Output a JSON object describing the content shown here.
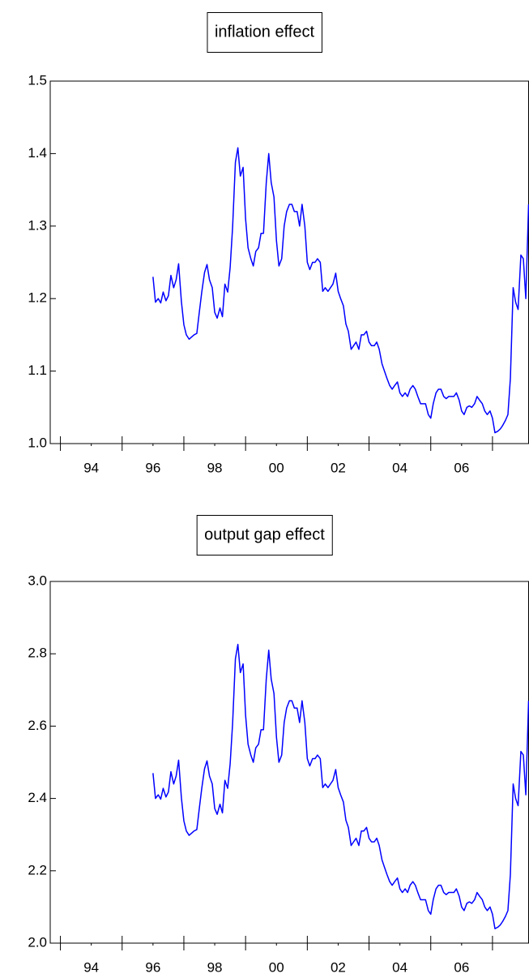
{
  "chart_data": [
    {
      "type": "line",
      "title": "inflation effect",
      "color": "#0000ff",
      "x": [
        1996,
        1996.08,
        1996.17,
        1996.25,
        1996.33,
        1996.42,
        1996.5,
        1996.58,
        1996.67,
        1996.75,
        1996.83,
        1996.92,
        1997,
        1997.08,
        1997.17,
        1997.25,
        1997.33,
        1997.42,
        1997.5,
        1997.58,
        1997.67,
        1997.75,
        1997.83,
        1997.92,
        1998,
        1998.08,
        1998.17,
        1998.25,
        1998.33,
        1998.42,
        1998.5,
        1998.58,
        1998.67,
        1998.75,
        1998.83,
        1998.92,
        1999,
        1999.08,
        1999.17,
        1999.25,
        1999.33,
        1999.42,
        1999.5,
        1999.58,
        1999.67,
        1999.75,
        1999.83,
        1999.92,
        2000,
        2000.08,
        2000.17,
        2000.25,
        2000.33,
        2000.42,
        2000.5,
        2000.58,
        2000.67,
        2000.75,
        2000.83,
        2000.92,
        2001,
        2001.08,
        2001.17,
        2001.25,
        2001.33,
        2001.42,
        2001.5,
        2001.58,
        2001.67,
        2001.75,
        2001.83,
        2001.92,
        2002,
        2002.08,
        2002.17,
        2002.25,
        2002.33,
        2002.42,
        2002.5,
        2002.58,
        2002.67,
        2002.75,
        2002.83,
        2002.92,
        2003,
        2003.08,
        2003.17,
        2003.25,
        2003.33,
        2003.42,
        2003.5,
        2003.58,
        2003.67,
        2003.75,
        2003.83,
        2003.92,
        2004,
        2004.08,
        2004.17,
        2004.25,
        2004.33,
        2004.42,
        2004.5,
        2004.58,
        2004.67,
        2004.75,
        2004.83,
        2004.92,
        2005,
        2005.08,
        2005.17,
        2005.25,
        2005.33,
        2005.42,
        2005.5,
        2005.58,
        2005.67,
        2005.75,
        2005.83,
        2005.92,
        2006,
        2006.08,
        2006.17,
        2006.25,
        2006.33,
        2006.42,
        2006.5,
        2006.58,
        2006.67,
        2006.75,
        2006.83,
        2006.92,
        2007,
        2007.08,
        2007.17,
        2007.25,
        2007.33,
        2007.42,
        2007.5,
        2007.58,
        2007.67,
        2007.75,
        2007.83,
        2007.92,
        2008,
        2008.08,
        2008.17
      ],
      "values": [
        1.23,
        1.195,
        1.2,
        1.194,
        1.209,
        1.197,
        1.204,
        1.232,
        1.215,
        1.226,
        1.248,
        1.196,
        1.164,
        1.15,
        1.144,
        1.147,
        1.15,
        1.152,
        1.181,
        1.209,
        1.236,
        1.247,
        1.226,
        1.215,
        1.181,
        1.173,
        1.187,
        1.175,
        1.22,
        1.209,
        1.243,
        1.299,
        1.388,
        1.408,
        1.369,
        1.381,
        1.31,
        1.27,
        1.255,
        1.245,
        1.265,
        1.27,
        1.29,
        1.29,
        1.36,
        1.4,
        1.36,
        1.34,
        1.28,
        1.245,
        1.255,
        1.3,
        1.32,
        1.33,
        1.33,
        1.32,
        1.32,
        1.3,
        1.33,
        1.3,
        1.25,
        1.24,
        1.25,
        1.25,
        1.255,
        1.25,
        1.21,
        1.215,
        1.21,
        1.215,
        1.22,
        1.235,
        1.21,
        1.2,
        1.19,
        1.165,
        1.155,
        1.13,
        1.135,
        1.14,
        1.13,
        1.15,
        1.15,
        1.155,
        1.14,
        1.135,
        1.135,
        1.14,
        1.13,
        1.11,
        1.1,
        1.09,
        1.08,
        1.075,
        1.08,
        1.085,
        1.07,
        1.065,
        1.07,
        1.065,
        1.075,
        1.08,
        1.075,
        1.065,
        1.055,
        1.055,
        1.055,
        1.04,
        1.035,
        1.055,
        1.07,
        1.075,
        1.075,
        1.065,
        1.062,
        1.065,
        1.065,
        1.065,
        1.07,
        1.06,
        1.045,
        1.04,
        1.05,
        1.052,
        1.05,
        1.055,
        1.065,
        1.06,
        1.055,
        1.045,
        1.04,
        1.045,
        1.035,
        1.015,
        1.017,
        1.02,
        1.025,
        1.032,
        1.04,
        1.09,
        1.215,
        1.195,
        1.185,
        1.26,
        1.255,
        1.2,
        1.33
      ],
      "xlim": [
        1992.67,
        2008.17
      ],
      "xticks": [
        {
          "value": 1994,
          "label": "94"
        },
        {
          "value": 1996,
          "label": "96"
        },
        {
          "value": 1998,
          "label": "98"
        },
        {
          "value": 2000,
          "label": "00"
        },
        {
          "value": 2002,
          "label": "02"
        },
        {
          "value": 2004,
          "label": "04"
        },
        {
          "value": 2006,
          "label": "06"
        }
      ],
      "x_minor_ticks": [
        1993,
        1995,
        1997,
        1999,
        2001,
        2003,
        2005,
        2007
      ],
      "ylim": [
        1.0,
        1.5
      ],
      "yticks": [
        {
          "value": 1.0,
          "label": "1.0"
        },
        1.1,
        1.2,
        1.3,
        1.4,
        1.5
      ]
    },
    {
      "type": "line",
      "title": "output gap effect",
      "color": "#0000ff",
      "x": [
        1996,
        1996.08,
        1996.17,
        1996.25,
        1996.33,
        1996.42,
        1996.5,
        1996.58,
        1996.67,
        1996.75,
        1996.83,
        1996.92,
        1997,
        1997.08,
        1997.17,
        1997.25,
        1997.33,
        1997.42,
        1997.5,
        1997.58,
        1997.67,
        1997.75,
        1997.83,
        1997.92,
        1998,
        1998.08,
        1998.17,
        1998.25,
        1998.33,
        1998.42,
        1998.5,
        1998.58,
        1998.67,
        1998.75,
        1998.83,
        1998.92,
        1999,
        1999.08,
        1999.17,
        1999.25,
        1999.33,
        1999.42,
        1999.5,
        1999.58,
        1999.67,
        1999.75,
        1999.83,
        1999.92,
        2000,
        2000.08,
        2000.17,
        2000.25,
        2000.33,
        2000.42,
        2000.5,
        2000.58,
        2000.67,
        2000.75,
        2000.83,
        2000.92,
        2001,
        2001.08,
        2001.17,
        2001.25,
        2001.33,
        2001.42,
        2001.5,
        2001.58,
        2001.67,
        2001.75,
        2001.83,
        2001.92,
        2002,
        2002.08,
        2002.17,
        2002.25,
        2002.33,
        2002.42,
        2002.5,
        2002.58,
        2002.67,
        2002.75,
        2002.83,
        2002.92,
        2003,
        2003.08,
        2003.17,
        2003.25,
        2003.33,
        2003.42,
        2003.5,
        2003.58,
        2003.67,
        2003.75,
        2003.83,
        2003.92,
        2004,
        2004.08,
        2004.17,
        2004.25,
        2004.33,
        2004.42,
        2004.5,
        2004.58,
        2004.67,
        2004.75,
        2004.83,
        2004.92,
        2005,
        2005.08,
        2005.17,
        2005.25,
        2005.33,
        2005.42,
        2005.5,
        2005.58,
        2005.67,
        2005.75,
        2005.83,
        2005.92,
        2006,
        2006.08,
        2006.17,
        2006.25,
        2006.33,
        2006.42,
        2006.5,
        2006.58,
        2006.67,
        2006.75,
        2006.83,
        2006.92,
        2007,
        2007.08,
        2007.17,
        2007.25,
        2007.33,
        2007.42,
        2007.5,
        2007.58,
        2007.67,
        2007.75,
        2007.83,
        2007.92,
        2008,
        2008.08,
        2008.17
      ],
      "values": [
        2.47,
        2.4,
        2.41,
        2.398,
        2.428,
        2.404,
        2.418,
        2.474,
        2.44,
        2.462,
        2.506,
        2.402,
        2.338,
        2.31,
        2.298,
        2.304,
        2.31,
        2.314,
        2.372,
        2.428,
        2.482,
        2.504,
        2.462,
        2.44,
        2.372,
        2.356,
        2.384,
        2.36,
        2.45,
        2.428,
        2.496,
        2.608,
        2.786,
        2.826,
        2.748,
        2.772,
        2.63,
        2.55,
        2.52,
        2.5,
        2.54,
        2.55,
        2.59,
        2.59,
        2.73,
        2.81,
        2.73,
        2.69,
        2.57,
        2.5,
        2.52,
        2.61,
        2.65,
        2.67,
        2.67,
        2.65,
        2.65,
        2.61,
        2.67,
        2.61,
        2.51,
        2.49,
        2.51,
        2.51,
        2.52,
        2.51,
        2.43,
        2.44,
        2.43,
        2.44,
        2.45,
        2.48,
        2.43,
        2.41,
        2.39,
        2.34,
        2.32,
        2.27,
        2.28,
        2.29,
        2.27,
        2.31,
        2.31,
        2.32,
        2.29,
        2.28,
        2.28,
        2.29,
        2.27,
        2.23,
        2.21,
        2.19,
        2.17,
        2.16,
        2.17,
        2.18,
        2.15,
        2.14,
        2.15,
        2.14,
        2.16,
        2.17,
        2.16,
        2.14,
        2.12,
        2.12,
        2.12,
        2.09,
        2.08,
        2.12,
        2.15,
        2.16,
        2.16,
        2.14,
        2.134,
        2.14,
        2.14,
        2.14,
        2.15,
        2.13,
        2.1,
        2.09,
        2.11,
        2.114,
        2.11,
        2.12,
        2.14,
        2.13,
        2.12,
        2.1,
        2.09,
        2.1,
        2.08,
        2.04,
        2.044,
        2.05,
        2.06,
        2.074,
        2.09,
        2.19,
        2.44,
        2.4,
        2.38,
        2.53,
        2.52,
        2.41,
        2.67
      ],
      "xlim": [
        1992.67,
        2008.17
      ],
      "xticks": [
        {
          "value": 1994,
          "label": "94"
        },
        {
          "value": 1996,
          "label": "96"
        },
        {
          "value": 1998,
          "label": "98"
        },
        {
          "value": 2000,
          "label": "00"
        },
        {
          "value": 2002,
          "label": "02"
        },
        {
          "value": 2004,
          "label": "04"
        },
        {
          "value": 2006,
          "label": "06"
        }
      ],
      "x_minor_ticks": [
        1993,
        1995,
        1997,
        1999,
        2001,
        2003,
        2005,
        2007
      ],
      "ylim": [
        2.0,
        3.0
      ],
      "yticks": [
        {
          "value": 2.0,
          "label": "2.0"
        },
        2.2,
        2.4,
        2.6,
        2.8,
        {
          "value": 3.0,
          "label": "3.0"
        }
      ]
    }
  ]
}
